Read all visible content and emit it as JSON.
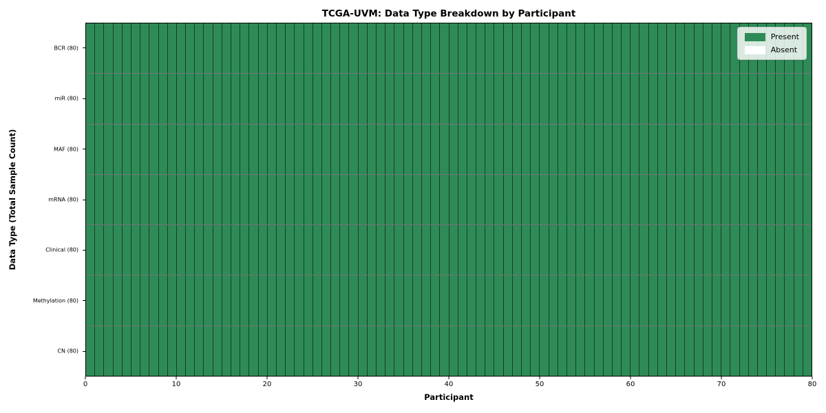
{
  "chart_data": {
    "type": "heatmap",
    "title": "TCGA-UVM: Data Type Breakdown by Participant",
    "xlabel": "Participant",
    "ylabel": "Data Type (Total Sample Count)",
    "xlim": [
      0,
      80
    ],
    "x_ticks": [
      0,
      10,
      20,
      30,
      40,
      50,
      60,
      70,
      80
    ],
    "n_participants": 80,
    "rows": [
      {
        "label": "BCR (80)",
        "data_type": "BCR",
        "total_sample_count": 80,
        "present_count": 80
      },
      {
        "label": "miR (80)",
        "data_type": "miR",
        "total_sample_count": 80,
        "present_count": 80
      },
      {
        "label": "MAF (80)",
        "data_type": "MAF",
        "total_sample_count": 80,
        "present_count": 80
      },
      {
        "label": "mRNA (80)",
        "data_type": "mRNA",
        "total_sample_count": 80,
        "present_count": 80
      },
      {
        "label": "Clinical (80)",
        "data_type": "Clinical",
        "total_sample_count": 80,
        "present_count": 80
      },
      {
        "label": "Methylation (80)",
        "data_type": "Methylation",
        "total_sample_count": 80,
        "present_count": 80
      },
      {
        "label": "CN (80)",
        "data_type": "CN",
        "total_sample_count": 80,
        "present_count": 80
      }
    ],
    "legend": [
      {
        "label": "Present",
        "color": "#2e8b57"
      },
      {
        "label": "Absent",
        "color": "#ffffff"
      }
    ],
    "colors": {
      "present": "#2e8b57",
      "absent": "#ffffff",
      "cell_edge": "rgba(0,0,0,0.55)",
      "spine": "#000000",
      "figure_bg": "#ffffff"
    },
    "grid": true,
    "legend_position": "top-right"
  }
}
